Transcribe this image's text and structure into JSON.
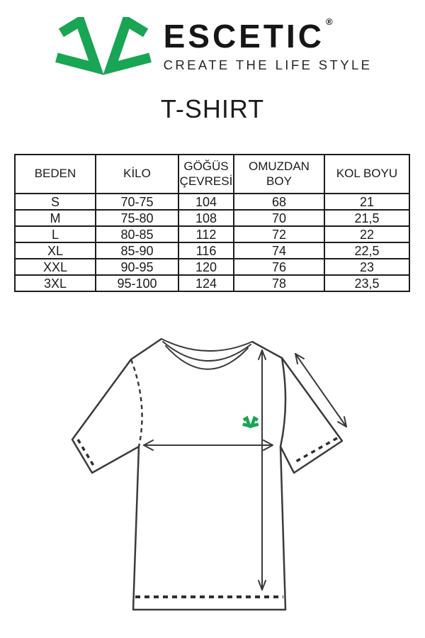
{
  "brand": {
    "name": "ESCETIC",
    "registered_mark": "®",
    "tagline": "CREATE THE LIFE STYLE",
    "logo_icon": "escetic-double-check-icon",
    "logo_color": "#18a554"
  },
  "page": {
    "title": "T-SHIRT"
  },
  "size_table": {
    "headers": [
      "BEDEN",
      "KİLO",
      "GÖĞÜS\nÇEVRESİ",
      "OMUZDAN\nBOY",
      "KOL BOYU"
    ],
    "rows": [
      [
        "S",
        "70-75",
        "104",
        "68",
        "21"
      ],
      [
        "M",
        "75-80",
        "108",
        "70",
        "21,5"
      ],
      [
        "L",
        "80-85",
        "112",
        "72",
        "22"
      ],
      [
        "XL",
        "85-90",
        "116",
        "74",
        "22,5"
      ],
      [
        "XXL",
        "90-95",
        "120",
        "76",
        "23"
      ],
      [
        "3XL",
        "95-100",
        "124",
        "78",
        "23,5"
      ]
    ]
  },
  "diagram": {
    "kind": "t-shirt measurement line drawing",
    "outline_color": "#3a3a3a",
    "logo_color": "#18a554",
    "arrows": [
      "chest-width-arrow",
      "shoulder-to-hem-arrow",
      "sleeve-length-arrow"
    ]
  }
}
